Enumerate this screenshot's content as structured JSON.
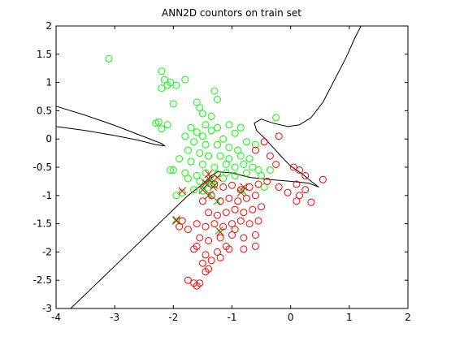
{
  "chart_data": {
    "type": "scatter",
    "title": "ANN2D countors on train set",
    "xlabel": "",
    "ylabel": "",
    "xlim": [
      -4,
      2
    ],
    "ylim": [
      -3,
      2
    ],
    "xticks": [
      -4,
      -3,
      -2,
      -1,
      0,
      1,
      2
    ],
    "yticks": [
      -3,
      -2.5,
      -2,
      -1.5,
      -1,
      -0.5,
      0,
      0.5,
      1,
      1.5,
      2
    ],
    "grid": false,
    "legend": "none",
    "series": [
      {
        "color": "#00ff00",
        "marker": "circle",
        "points": [
          [
            -3.1,
            1.42
          ],
          [
            -2.2,
            1.2
          ],
          [
            -2.15,
            1.05
          ],
          [
            -2.05,
            1.0
          ],
          [
            -2.1,
            0.95
          ],
          [
            -2.2,
            0.9
          ],
          [
            -1.95,
            0.95
          ],
          [
            -1.8,
            1.05
          ],
          [
            -1.3,
            0.85
          ],
          [
            -2.0,
            0.62
          ],
          [
            -1.25,
            0.7
          ],
          [
            -1.6,
            0.65
          ],
          [
            -1.55,
            0.55
          ],
          [
            -1.5,
            0.45
          ],
          [
            -1.35,
            0.4
          ],
          [
            -2.25,
            0.3
          ],
          [
            -2.2,
            0.18
          ],
          [
            -2.3,
            0.28
          ],
          [
            -2.1,
            0.25
          ],
          [
            -1.7,
            0.2
          ],
          [
            -1.45,
            0.25
          ],
          [
            -1.05,
            0.25
          ],
          [
            -0.85,
            0.2
          ],
          [
            -1.25,
            0.2
          ],
          [
            -1.6,
            0.12
          ],
          [
            -1.35,
            0.15
          ],
          [
            -0.95,
            0.1
          ],
          [
            -0.25,
            0.38
          ],
          [
            -1.8,
            0.05
          ],
          [
            -1.5,
            0.05
          ],
          [
            -1.15,
            0.0
          ],
          [
            -0.75,
            -0.05
          ],
          [
            -1.65,
            -0.05
          ],
          [
            -1.45,
            -0.1
          ],
          [
            -1.25,
            -0.1
          ],
          [
            -1.05,
            -0.15
          ],
          [
            -0.9,
            -0.2
          ],
          [
            -0.6,
            -0.1
          ],
          [
            -1.75,
            -0.2
          ],
          [
            -1.55,
            -0.25
          ],
          [
            -1.4,
            -0.3
          ],
          [
            -1.2,
            -0.3
          ],
          [
            -1.05,
            -0.35
          ],
          [
            -0.85,
            -0.3
          ],
          [
            -0.7,
            -0.35
          ],
          [
            -1.9,
            -0.35
          ],
          [
            -1.7,
            -0.4
          ],
          [
            -1.5,
            -0.45
          ],
          [
            -1.3,
            -0.5
          ],
          [
            -1.1,
            -0.45
          ],
          [
            -0.95,
            -0.5
          ],
          [
            -0.8,
            -0.45
          ],
          [
            -0.65,
            -0.5
          ],
          [
            -0.55,
            -0.55
          ],
          [
            -2.0,
            -0.55
          ],
          [
            -1.8,
            -0.6
          ],
          [
            -1.6,
            -0.65
          ],
          [
            -1.45,
            -0.6
          ],
          [
            -1.25,
            -0.62
          ],
          [
            -1.1,
            -0.6
          ],
          [
            -0.95,
            -0.65
          ],
          [
            -0.75,
            -0.6
          ],
          [
            -0.5,
            -0.65
          ],
          [
            -0.35,
            -0.55
          ],
          [
            -1.75,
            -0.7
          ],
          [
            -1.55,
            -0.75
          ],
          [
            -1.35,
            -0.8
          ],
          [
            -1.15,
            -0.7
          ],
          [
            -1.85,
            -0.95
          ],
          [
            -1.65,
            -0.9
          ],
          [
            -1.5,
            -0.92
          ],
          [
            -2.05,
            -0.55
          ],
          [
            -1.95,
            -1.0
          ],
          [
            -0.45,
            -0.85
          ]
        ]
      },
      {
        "color": "#ff0000",
        "marker": "circle",
        "points": [
          [
            -0.2,
            0.05
          ],
          [
            -0.45,
            -0.05
          ],
          [
            -0.6,
            -0.2
          ],
          [
            -0.35,
            -0.3
          ],
          [
            -0.25,
            -0.45
          ],
          [
            0.05,
            -0.5
          ],
          [
            0.15,
            -0.55
          ],
          [
            0.25,
            -0.65
          ],
          [
            0.55,
            -0.72
          ],
          [
            0.1,
            -0.8
          ],
          [
            0.25,
            -0.9
          ],
          [
            0.15,
            -1.0
          ],
          [
            0.35,
            -1.12
          ],
          [
            0.1,
            -1.1
          ],
          [
            -0.05,
            -0.95
          ],
          [
            -0.2,
            -0.85
          ],
          [
            -0.4,
            -0.75
          ],
          [
            -0.55,
            -0.8
          ],
          [
            -0.7,
            -0.85
          ],
          [
            -0.85,
            -0.9
          ],
          [
            -1.0,
            -0.82
          ],
          [
            -1.15,
            -0.85
          ],
          [
            -1.3,
            -0.8
          ],
          [
            -0.6,
            -1.0
          ],
          [
            -0.75,
            -1.05
          ],
          [
            -0.9,
            -1.1
          ],
          [
            -1.05,
            -1.05
          ],
          [
            -1.2,
            -1.1
          ],
          [
            -1.35,
            -1.0
          ],
          [
            -1.5,
            -1.1
          ],
          [
            -0.5,
            -1.2
          ],
          [
            -0.65,
            -1.25
          ],
          [
            -0.8,
            -1.3
          ],
          [
            -0.95,
            -1.25
          ],
          [
            -1.1,
            -1.3
          ],
          [
            -1.25,
            -1.35
          ],
          [
            -1.4,
            -1.3
          ],
          [
            -0.55,
            -1.45
          ],
          [
            -0.7,
            -1.5
          ],
          [
            -0.85,
            -1.45
          ],
          [
            -1.0,
            -1.5
          ],
          [
            -1.15,
            -1.55
          ],
          [
            -1.3,
            -1.5
          ],
          [
            -1.45,
            -1.55
          ],
          [
            -1.6,
            -1.5
          ],
          [
            -1.75,
            -1.6
          ],
          [
            -1.9,
            -1.55
          ],
          [
            -1.85,
            -1.45
          ],
          [
            -0.6,
            -1.7
          ],
          [
            -0.8,
            -1.75
          ],
          [
            -1.0,
            -1.7
          ],
          [
            -1.2,
            -1.75
          ],
          [
            -1.4,
            -1.8
          ],
          [
            -1.55,
            -1.75
          ],
          [
            -0.6,
            -1.9
          ],
          [
            -0.8,
            -1.95
          ],
          [
            -1.05,
            -1.95
          ],
          [
            -1.25,
            -2.0
          ],
          [
            -1.45,
            -2.05
          ],
          [
            -1.6,
            -1.9
          ],
          [
            -1.65,
            -1.95
          ],
          [
            -1.5,
            -2.2
          ],
          [
            -1.35,
            -2.15
          ],
          [
            -1.2,
            -2.1
          ],
          [
            -1.45,
            -2.35
          ],
          [
            -1.4,
            -2.3
          ],
          [
            -1.6,
            -2.6
          ],
          [
            -1.75,
            -2.5
          ],
          [
            -1.65,
            -2.55
          ],
          [
            -1.55,
            -2.55
          ],
          [
            -0.95,
            -1.6
          ],
          [
            -1.1,
            -1.9
          ]
        ]
      },
      {
        "color": "#ff0000",
        "marker": "x",
        "points": [
          [
            -1.45,
            -0.78
          ],
          [
            -1.38,
            -0.72
          ],
          [
            -1.32,
            -0.85
          ],
          [
            -1.5,
            -0.9
          ],
          [
            -1.25,
            -0.68
          ],
          [
            -1.4,
            -1.0
          ],
          [
            -1.95,
            -1.43
          ],
          [
            -1.2,
            -1.65
          ],
          [
            -0.85,
            -0.95
          ],
          [
            -0.8,
            -0.85
          ],
          [
            -1.85,
            -0.92
          ],
          [
            -1.4,
            -0.62
          ]
        ]
      },
      {
        "color": "#00aa00",
        "marker": "x",
        "points": [
          [
            -1.42,
            -0.8
          ],
          [
            -1.35,
            -0.7
          ],
          [
            -1.3,
            -0.82
          ],
          [
            -1.48,
            -0.88
          ],
          [
            -1.25,
            -1.1
          ],
          [
            -1.95,
            -1.45
          ],
          [
            -1.22,
            -1.62
          ],
          [
            -0.82,
            -0.92
          ],
          [
            -1.38,
            -0.98
          ]
        ]
      }
    ],
    "contours": [
      [
        [
          -4,
          0.58
        ],
        [
          -3.5,
          0.42
        ],
        [
          -3.0,
          0.24
        ],
        [
          -2.6,
          0.08
        ],
        [
          -2.35,
          -0.02
        ],
        [
          -2.2,
          -0.08
        ],
        [
          -2.15,
          -0.12
        ],
        [
          -2.3,
          -0.1
        ],
        [
          -2.6,
          -0.02
        ],
        [
          -3.0,
          0.06
        ],
        [
          -3.5,
          0.15
        ],
        [
          -4,
          0.22
        ]
      ],
      [
        [
          -3.75,
          -3.0
        ],
        [
          -3.3,
          -2.55
        ],
        [
          -2.9,
          -2.15
        ],
        [
          -2.5,
          -1.75
        ],
        [
          -2.1,
          -1.35
        ],
        [
          -1.75,
          -1.0
        ],
        [
          -1.5,
          -0.8
        ],
        [
          -1.35,
          -0.65
        ],
        [
          -1.25,
          -0.58
        ],
        [
          -1.0,
          -0.6
        ],
        [
          -0.7,
          -0.68
        ],
        [
          -0.35,
          -0.72
        ],
        [
          0.0,
          -0.75
        ],
        [
          0.3,
          -0.78
        ],
        [
          0.48,
          -0.85
        ],
        [
          0.35,
          -0.75
        ],
        [
          0.2,
          -0.62
        ],
        [
          0.0,
          -0.48
        ],
        [
          -0.15,
          -0.32
        ],
        [
          -0.3,
          -0.15
        ],
        [
          -0.45,
          0.02
        ],
        [
          -0.58,
          0.15
        ],
        [
          -0.62,
          0.28
        ],
        [
          -0.5,
          0.35
        ],
        [
          -0.3,
          0.28
        ],
        [
          -0.05,
          0.22
        ],
        [
          0.15,
          0.25
        ],
        [
          0.35,
          0.38
        ],
        [
          0.55,
          0.65
        ],
        [
          0.75,
          1.05
        ],
        [
          0.95,
          1.45
        ],
        [
          1.1,
          1.8
        ],
        [
          1.2,
          2.0
        ]
      ]
    ]
  }
}
